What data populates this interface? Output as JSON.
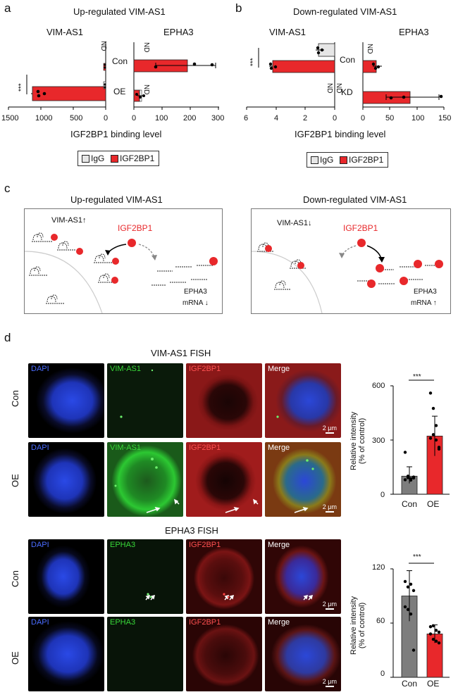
{
  "panel_a": {
    "letter": "a",
    "title": "Up-regulated VIM-AS1",
    "left_label": "VIM-AS1",
    "right_label": "EPHA3",
    "rows": [
      "Con",
      "OE"
    ],
    "nd": "ND",
    "stars": "***",
    "left_ticks": [
      "1500",
      "1000",
      "500",
      "0"
    ],
    "right_ticks": [
      "0",
      "100",
      "200",
      "300"
    ],
    "xlabel": "IGF2BP1 binding level",
    "legend": [
      "IgG",
      "IGF2BP1"
    ]
  },
  "panel_b": {
    "letter": "b",
    "title": "Down-regulated VIM-AS1",
    "left_label": "VIM-AS1",
    "right_label": "EPHA3",
    "rows": [
      "Con",
      "KD"
    ],
    "nd": "ND",
    "stars": "***",
    "left_ticks": [
      "6",
      "4",
      "2",
      "0"
    ],
    "right_ticks": [
      "0",
      "50",
      "100",
      "150"
    ],
    "xlabel": "IGF2BP1 binding level",
    "legend": [
      "IgG",
      "IGF2BP1"
    ]
  },
  "panel_c": {
    "letter": "c",
    "left": {
      "title": "Up-regulated VIM-AS1",
      "vim": "VIM-AS1",
      "vim_arrow": "↑",
      "protein": "IGF2BP1",
      "epha": "EPHA3",
      "mrna": "mRNA",
      "mrna_arrow": "↓"
    },
    "right": {
      "title": "Down-regulated VIM-AS1",
      "vim": "VIM-AS1",
      "vim_arrow": "↓",
      "protein": "IGF2BP1",
      "epha": "EPHA3",
      "mrna": "mRNA",
      "mrna_arrow": "↑"
    }
  },
  "panel_d": {
    "letter": "d",
    "fish1_title": "VIM-AS1 FISH",
    "fish2_title": "EPHA3 FISH",
    "fish1_cols": [
      "DAPI",
      "VIM-AS1",
      "IGF2BP1",
      "Merge"
    ],
    "fish2_cols": [
      "DAPI",
      "EPHA3",
      "IGF2BP1",
      "Merge"
    ],
    "rows": [
      "Con",
      "OE"
    ],
    "scale": "2 μm",
    "ylabel_1": "Relative intensity",
    "ylabel_2": "(% of control)",
    "stars": "***"
  },
  "colors": {
    "red": "#e8282b",
    "gray": "#7d7d7d",
    "light_gray": "#e6e6e6",
    "dapi": "#1f3fd8",
    "green": "#2fd233",
    "pink": "#e8474b"
  },
  "chart_data": [
    {
      "type": "bar",
      "title": "Up-regulated VIM-AS1 — VIM-AS1",
      "categories": [
        "Con",
        "OE"
      ],
      "series": [
        {
          "name": "IGF2BP1",
          "values": [
            3,
            1130
          ]
        }
      ],
      "xlabel": "IGF2BP1 binding level",
      "xlim": [
        1500,
        0
      ]
    },
    {
      "type": "bar",
      "title": "Up-regulated VIM-AS1 — EPHA3",
      "categories": [
        "Con",
        "OE"
      ],
      "series": [
        {
          "name": "IGF2BP1",
          "values": [
            190,
            20
          ]
        }
      ],
      "xlabel": "IGF2BP1 binding level",
      "xlim": [
        0,
        300
      ]
    },
    {
      "type": "bar",
      "title": "Down-regulated VIM-AS1 — VIM-AS1",
      "categories": [
        "Con",
        "KD"
      ],
      "series": [
        {
          "name": "IgG",
          "values": [
            1.0,
            0
          ]
        },
        {
          "name": "IGF2BP1",
          "values": [
            0,
            4.2
          ]
        }
      ],
      "xlabel": "IGF2BP1 binding level",
      "xlim": [
        6,
        0
      ]
    },
    {
      "type": "bar",
      "title": "Down-regulated VIM-AS1 — EPHA3",
      "categories": [
        "Con",
        "KD"
      ],
      "series": [
        {
          "name": "IGF2BP1",
          "values": [
            25,
            85
          ]
        }
      ],
      "xlabel": "IGF2BP1 binding level",
      "xlim": [
        0,
        150
      ]
    },
    {
      "type": "bar",
      "title": "VIM-AS1 FISH",
      "categories": [
        "Con",
        "OE"
      ],
      "values": [
        100,
        322
      ],
      "ylabel": "Relative intensity (% of control)",
      "ylim": [
        0,
        600
      ],
      "yticks": [
        0,
        300,
        600
      ]
    },
    {
      "type": "bar",
      "title": "EPHA3 FISH",
      "categories": [
        "Con",
        "OE"
      ],
      "values": [
        90,
        48
      ],
      "ylabel": "Relative intensity (% of control)",
      "ylim": [
        0,
        120
      ],
      "yticks": [
        0,
        60,
        120
      ]
    }
  ]
}
